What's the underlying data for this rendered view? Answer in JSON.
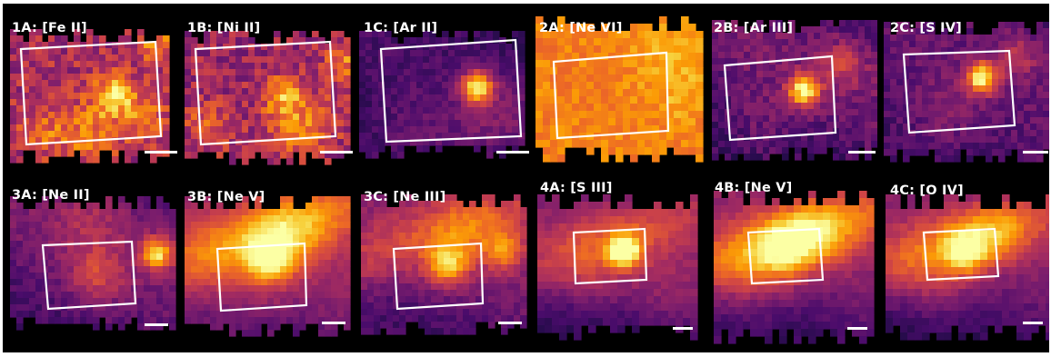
{
  "figure": {
    "background_color": "#000000",
    "colormap": "inferno",
    "colormap_stops": [
      "#000004",
      "#1b0c41",
      "#4a0c6b",
      "#781c6d",
      "#a52c60",
      "#cf4446",
      "#ed6925",
      "#fb9b06",
      "#f7d13d",
      "#fcffa4"
    ],
    "aperture_color": "#ffffff",
    "scalebar_color": "#ffffff",
    "panels": [
      {
        "label": "1A: [Fe II]"
      },
      {
        "label": "1B: [Ni II]"
      },
      {
        "label": "1C: [Ar II]"
      },
      {
        "label": "2A: [Ne VI]"
      },
      {
        "label": "2B: [Ar III]"
      },
      {
        "label": "2C: [S IV]"
      },
      {
        "label": "3A: [Ne II]"
      },
      {
        "label": "3B: [Ne V]"
      },
      {
        "label": "3C: [Ne III]"
      },
      {
        "label": "4A: [S III]"
      },
      {
        "label": "4B: [Ne V]"
      },
      {
        "label": "4C: [O IV]"
      }
    ]
  }
}
